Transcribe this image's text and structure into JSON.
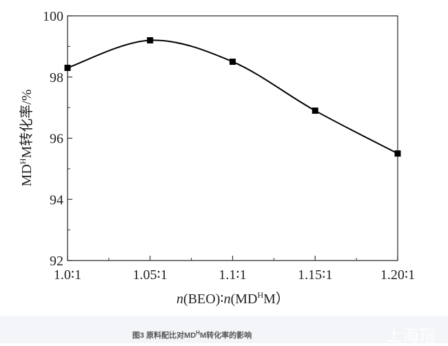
{
  "chart_data": {
    "type": "line",
    "categories": [
      "1.0:1",
      "1.05:1",
      "1.1:1",
      "1.15:1",
      "1.20:1"
    ],
    "x": [
      1.0,
      1.05,
      1.1,
      1.15,
      1.2
    ],
    "values": [
      98.3,
      99.2,
      98.5,
      96.9,
      95.5
    ],
    "xlabel": {
      "prefix_italic": "n",
      "part1": "(BEO)∶",
      "italic2": "n",
      "part2": "(MD",
      "sup": "H",
      "part3": "M）"
    },
    "ylabel": {
      "pre": "MD",
      "sup": "H",
      "post": "M转化率/%"
    },
    "xlim": [
      1.0,
      1.2
    ],
    "ylim": [
      92,
      100
    ],
    "yticks": [
      "92",
      "94",
      "96",
      "98",
      "100"
    ],
    "marker": "square",
    "smooth": true,
    "grid": false,
    "line_color": "#000000"
  },
  "caption": {
    "pre": "图3 原料配比对MD",
    "sup": "H",
    "post": "M转化率的影响"
  },
  "watermark": "上海瑁"
}
